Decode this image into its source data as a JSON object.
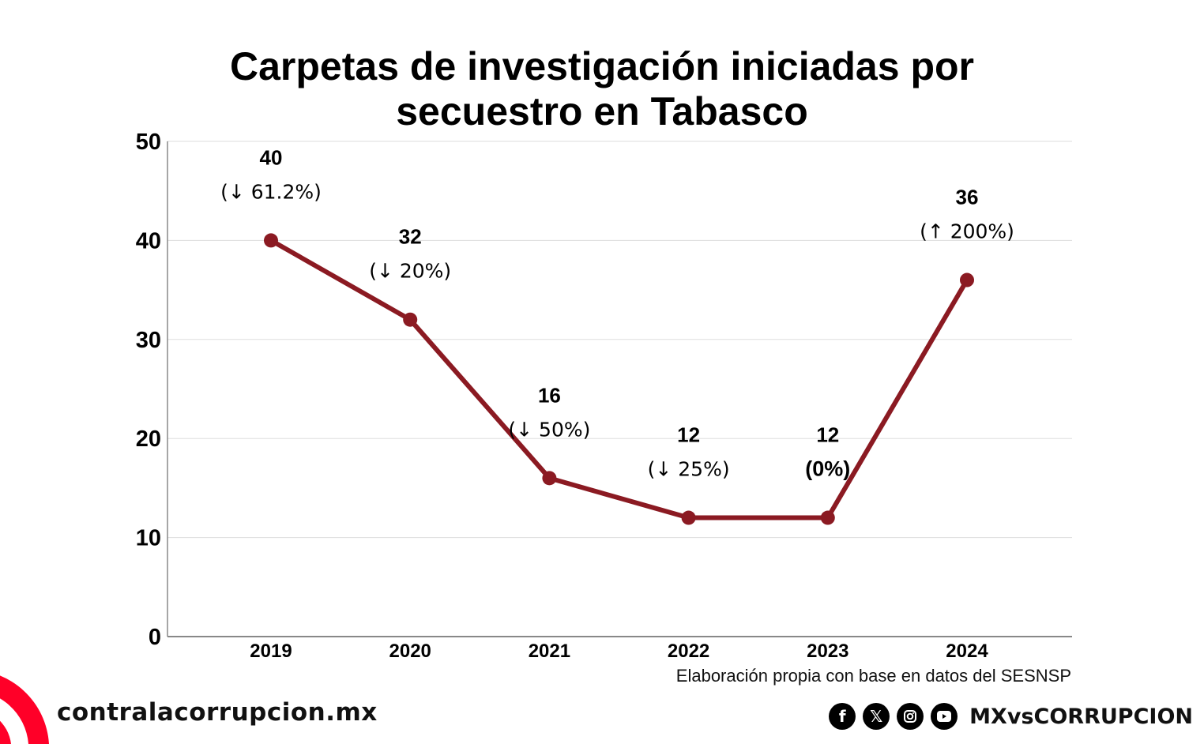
{
  "chart_data": {
    "type": "line",
    "title": "Carpetas de investigación iniciadas por secuestro en Tabasco",
    "title_lines": [
      "Carpetas de investigación iniciadas por",
      "secuestro en Tabasco"
    ],
    "categories": [
      "2019",
      "2020",
      "2021",
      "2022",
      "2023",
      "2024"
    ],
    "series": [
      {
        "name": "Carpetas de investigación",
        "values": [
          40,
          32,
          16,
          12,
          12,
          36
        ],
        "color": "#8b1a22"
      }
    ],
    "data_labels": [
      {
        "value": "40",
        "change": "(↓ 61.2%)"
      },
      {
        "value": "32",
        "change": "(↓ 20%)"
      },
      {
        "value": "16",
        "change": "(↓ 50%)"
      },
      {
        "value": "12",
        "change": "(↓ 25%)"
      },
      {
        "value": "12",
        "change": "(0%)"
      },
      {
        "value": "36",
        "change": "(↑ 200%)"
      }
    ],
    "xlabel": "",
    "ylabel": "",
    "ylim": [
      0,
      50
    ],
    "yticks": [
      0,
      10,
      20,
      30,
      40,
      50
    ],
    "grid": true,
    "legend": "none",
    "source": "Elaboración propia con base en datos del SESNSP"
  },
  "footer": {
    "site": "contralacorrupcion.mx",
    "brand_color": "#ff0028",
    "social_icons": [
      "facebook-icon",
      "x-icon",
      "instagram-icon",
      "youtube-icon"
    ],
    "social_handle": "MXvsCORRUPCION"
  }
}
